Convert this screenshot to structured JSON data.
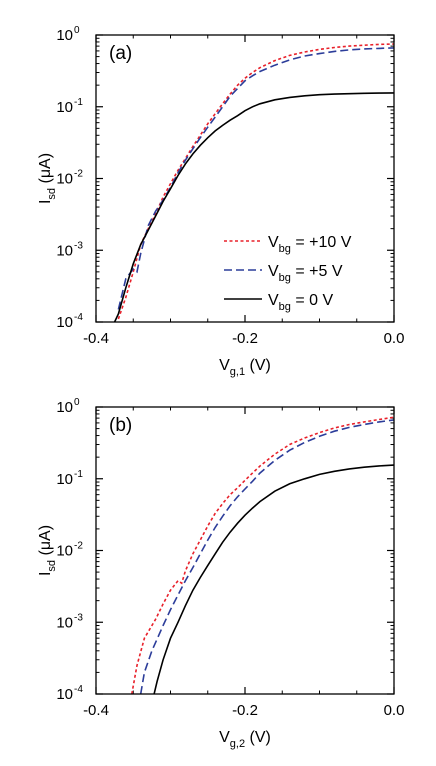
{
  "chart_data": [
    {
      "type": "line",
      "panel_label": "(a)",
      "xlabel": {
        "main": "V",
        "sub": "g,1",
        "unit": " (V)"
      },
      "ylabel": {
        "main": "I",
        "sub": "sd",
        "unit": " (μA)"
      },
      "xlim": [
        -0.4,
        0.0
      ],
      "ylim": [
        0.0001,
        1
      ],
      "yscale": "log",
      "x_ticks": [
        {
          "value": -0.4,
          "label": "-0.4"
        },
        {
          "value": -0.2,
          "label": "-0.2"
        },
        {
          "value": 0.0,
          "label": "0.0"
        }
      ],
      "y_ticks": [
        {
          "value": 1,
          "base": "10",
          "exp": "0"
        },
        {
          "value": 0.1,
          "base": "10",
          "exp": "-1"
        },
        {
          "value": 0.01,
          "base": "10",
          "exp": "-2"
        },
        {
          "value": 0.001,
          "base": "10",
          "exp": "-3"
        },
        {
          "value": 0.0001,
          "base": "10",
          "exp": "-4"
        }
      ],
      "legend_position": "lower-right",
      "series": [
        {
          "name_main": "V",
          "name_sub": "bg",
          "name_value": " = +10 V",
          "color": "#e8202a",
          "dash": "3,2.5",
          "points": [
            [
              -0.37,
              0.00011
            ],
            [
              -0.36,
              0.00022
            ],
            [
              -0.35,
              0.0005
            ],
            [
              -0.34,
              0.0012
            ],
            [
              -0.33,
              0.002
            ],
            [
              -0.32,
              0.0032
            ],
            [
              -0.31,
              0.0055
            ],
            [
              -0.3,
              0.0085
            ],
            [
              -0.29,
              0.013
            ],
            [
              -0.28,
              0.019
            ],
            [
              -0.27,
              0.028
            ],
            [
              -0.26,
              0.04
            ],
            [
              -0.25,
              0.058
            ],
            [
              -0.24,
              0.08
            ],
            [
              -0.23,
              0.11
            ],
            [
              -0.22,
              0.15
            ],
            [
              -0.21,
              0.2
            ],
            [
              -0.2,
              0.25
            ],
            [
              -0.19,
              0.3
            ],
            [
              -0.18,
              0.35
            ],
            [
              -0.16,
              0.44
            ],
            [
              -0.14,
              0.52
            ],
            [
              -0.12,
              0.58
            ],
            [
              -0.1,
              0.63
            ],
            [
              -0.08,
              0.67
            ],
            [
              -0.06,
              0.7
            ],
            [
              -0.04,
              0.72
            ],
            [
              -0.02,
              0.74
            ],
            [
              0.0,
              0.75
            ]
          ]
        },
        {
          "name_main": "V",
          "name_sub": "bg",
          "name_value": " = +5 V",
          "color": "#2c3d9a",
          "dash": "8,4",
          "points": [
            [
              -0.37,
              0.00015
            ],
            [
              -0.36,
              0.0004
            ],
            [
              -0.35,
              0.00055
            ],
            [
              -0.345,
              0.0005
            ],
            [
              -0.34,
              0.0009
            ],
            [
              -0.33,
              0.0022
            ],
            [
              -0.32,
              0.0035
            ],
            [
              -0.31,
              0.005
            ],
            [
              -0.3,
              0.0075
            ],
            [
              -0.29,
              0.012
            ],
            [
              -0.28,
              0.018
            ],
            [
              -0.27,
              0.026
            ],
            [
              -0.26,
              0.037
            ],
            [
              -0.25,
              0.052
            ],
            [
              -0.24,
              0.072
            ],
            [
              -0.23,
              0.1
            ],
            [
              -0.22,
              0.14
            ],
            [
              -0.21,
              0.18
            ],
            [
              -0.2,
              0.23
            ],
            [
              -0.19,
              0.27
            ],
            [
              -0.18,
              0.31
            ],
            [
              -0.16,
              0.38
            ],
            [
              -0.14,
              0.45
            ],
            [
              -0.12,
              0.51
            ],
            [
              -0.1,
              0.55
            ],
            [
              -0.08,
              0.59
            ],
            [
              -0.06,
              0.62
            ],
            [
              -0.04,
              0.64
            ],
            [
              -0.02,
              0.65
            ],
            [
              0.0,
              0.66
            ]
          ]
        },
        {
          "name_main": "V",
          "name_sub": "bg",
          "name_value": " = 0 V",
          "color": "#000000",
          "dash": "",
          "points": [
            [
              -0.375,
              0.0001
            ],
            [
              -0.37,
              0.00013
            ],
            [
              -0.36,
              0.0003
            ],
            [
              -0.35,
              0.00065
            ],
            [
              -0.34,
              0.0012
            ],
            [
              -0.33,
              0.0019
            ],
            [
              -0.32,
              0.003
            ],
            [
              -0.31,
              0.0048
            ],
            [
              -0.3,
              0.0072
            ],
            [
              -0.29,
              0.011
            ],
            [
              -0.28,
              0.016
            ],
            [
              -0.27,
              0.022
            ],
            [
              -0.26,
              0.029
            ],
            [
              -0.25,
              0.037
            ],
            [
              -0.24,
              0.046
            ],
            [
              -0.23,
              0.055
            ],
            [
              -0.22,
              0.065
            ],
            [
              -0.21,
              0.075
            ],
            [
              -0.2,
              0.088
            ],
            [
              -0.19,
              0.1
            ],
            [
              -0.18,
              0.11
            ],
            [
              -0.16,
              0.125
            ],
            [
              -0.14,
              0.135
            ],
            [
              -0.12,
              0.142
            ],
            [
              -0.1,
              0.147
            ],
            [
              -0.08,
              0.15
            ],
            [
              -0.06,
              0.152
            ],
            [
              -0.04,
              0.154
            ],
            [
              -0.02,
              0.155
            ],
            [
              0.0,
              0.156
            ]
          ]
        }
      ]
    },
    {
      "type": "line",
      "panel_label": "(b)",
      "xlabel": {
        "main": "V",
        "sub": "g,2",
        "unit": " (V)"
      },
      "ylabel": {
        "main": "I",
        "sub": "sd",
        "unit": " (μA)"
      },
      "xlim": [
        -0.4,
        0.0
      ],
      "ylim": [
        0.0001,
        1
      ],
      "yscale": "log",
      "x_ticks": [
        {
          "value": -0.4,
          "label": "-0.4"
        },
        {
          "value": -0.2,
          "label": "-0.2"
        },
        {
          "value": 0.0,
          "label": "0.0"
        }
      ],
      "y_ticks": [
        {
          "value": 1,
          "base": "10",
          "exp": "0"
        },
        {
          "value": 0.1,
          "base": "10",
          "exp": "-1"
        },
        {
          "value": 0.01,
          "base": "10",
          "exp": "-2"
        },
        {
          "value": 0.001,
          "base": "10",
          "exp": "-3"
        },
        {
          "value": 0.0001,
          "base": "10",
          "exp": "-4"
        }
      ],
      "series": [
        {
          "color": "#e8202a",
          "dash": "3,2.5",
          "points": [
            [
              -0.352,
              0.0001
            ],
            [
              -0.345,
              0.00025
            ],
            [
              -0.335,
              0.0006
            ],
            [
              -0.32,
              0.0011
            ],
            [
              -0.31,
              0.0018
            ],
            [
              -0.3,
              0.0028
            ],
            [
              -0.29,
              0.0038
            ],
            [
              -0.285,
              0.0035
            ],
            [
              -0.28,
              0.0052
            ],
            [
              -0.27,
              0.009
            ],
            [
              -0.26,
              0.014
            ],
            [
              -0.25,
              0.022
            ],
            [
              -0.24,
              0.033
            ],
            [
              -0.23,
              0.045
            ],
            [
              -0.22,
              0.06
            ],
            [
              -0.21,
              0.075
            ],
            [
              -0.2,
              0.095
            ],
            [
              -0.19,
              0.12
            ],
            [
              -0.18,
              0.15
            ],
            [
              -0.16,
              0.22
            ],
            [
              -0.14,
              0.3
            ],
            [
              -0.12,
              0.37
            ],
            [
              -0.1,
              0.44
            ],
            [
              -0.08,
              0.51
            ],
            [
              -0.06,
              0.57
            ],
            [
              -0.04,
              0.62
            ],
            [
              -0.02,
              0.67
            ],
            [
              0.0,
              0.72
            ]
          ]
        },
        {
          "color": "#2c3d9a",
          "dash": "8,4",
          "points": [
            [
              -0.34,
              0.0001
            ],
            [
              -0.335,
              0.0002
            ],
            [
              -0.325,
              0.0004
            ],
            [
              -0.31,
              0.0009
            ],
            [
              -0.3,
              0.0015
            ],
            [
              -0.29,
              0.0024
            ],
            [
              -0.28,
              0.0038
            ],
            [
              -0.27,
              0.0058
            ],
            [
              -0.26,
              0.009
            ],
            [
              -0.25,
              0.014
            ],
            [
              -0.24,
              0.021
            ],
            [
              -0.23,
              0.03
            ],
            [
              -0.22,
              0.042
            ],
            [
              -0.21,
              0.056
            ],
            [
              -0.2,
              0.072
            ],
            [
              -0.19,
              0.092
            ],
            [
              -0.18,
              0.12
            ],
            [
              -0.16,
              0.18
            ],
            [
              -0.14,
              0.25
            ],
            [
              -0.12,
              0.32
            ],
            [
              -0.1,
              0.39
            ],
            [
              -0.08,
              0.46
            ],
            [
              -0.06,
              0.52
            ],
            [
              -0.04,
              0.57
            ],
            [
              -0.02,
              0.62
            ],
            [
              0.0,
              0.66
            ]
          ]
        },
        {
          "color": "#000000",
          "dash": "",
          "points": [
            [
              -0.322,
              0.0001
            ],
            [
              -0.318,
              0.00015
            ],
            [
              -0.31,
              0.0003
            ],
            [
              -0.3,
              0.0006
            ],
            [
              -0.29,
              0.001
            ],
            [
              -0.28,
              0.0017
            ],
            [
              -0.27,
              0.0028
            ],
            [
              -0.26,
              0.0042
            ],
            [
              -0.25,
              0.0062
            ],
            [
              -0.24,
              0.009
            ],
            [
              -0.23,
              0.013
            ],
            [
              -0.22,
              0.018
            ],
            [
              -0.21,
              0.024
            ],
            [
              -0.2,
              0.031
            ],
            [
              -0.19,
              0.039
            ],
            [
              -0.18,
              0.048
            ],
            [
              -0.16,
              0.067
            ],
            [
              -0.14,
              0.085
            ],
            [
              -0.12,
              0.1
            ],
            [
              -0.1,
              0.115
            ],
            [
              -0.08,
              0.127
            ],
            [
              -0.06,
              0.137
            ],
            [
              -0.04,
              0.145
            ],
            [
              -0.02,
              0.151
            ],
            [
              0.0,
              0.155
            ]
          ]
        }
      ]
    }
  ]
}
